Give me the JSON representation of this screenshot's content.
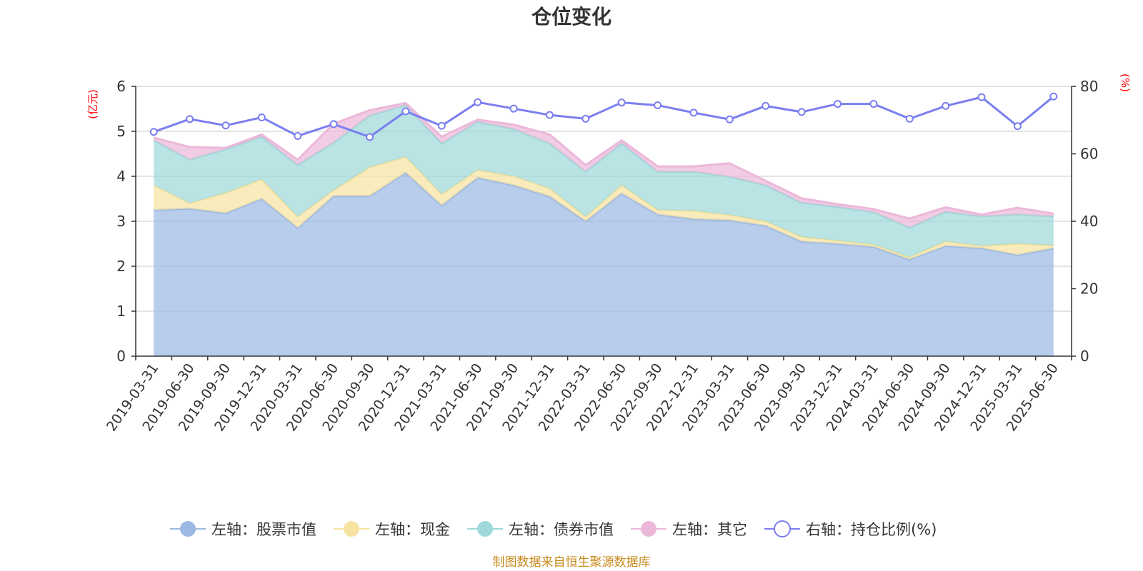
{
  "chart_data": {
    "type": "area",
    "title": "仓位变化",
    "y_left_unit": "(亿元)",
    "y_right_unit": "(%)",
    "y_left_range": [
      0,
      6
    ],
    "y_left_ticks": [
      "0",
      "1",
      "2",
      "3",
      "4",
      "5",
      "6"
    ],
    "y_right_range": [
      0,
      80
    ],
    "y_right_ticks": [
      "0",
      "20",
      "40",
      "60",
      "80"
    ],
    "x": [
      "2019-03-31",
      "2019-06-30",
      "2019-09-30",
      "2019-12-31",
      "2020-03-31",
      "2020-06-30",
      "2020-09-30",
      "2020-12-31",
      "2021-03-31",
      "2021-06-30",
      "2021-09-30",
      "2021-12-31",
      "2022-03-31",
      "2022-06-30",
      "2022-09-30",
      "2022-12-31",
      "2023-03-31",
      "2023-06-30",
      "2023-09-30",
      "2023-12-31",
      "2024-03-31",
      "2024-06-30",
      "2024-09-30",
      "2024-12-31",
      "2025-03-31",
      "2025-06-30"
    ],
    "series": [
      {
        "name": "左轴：股票市值",
        "axis": "left",
        "stacked": true,
        "color": "#9db9e3",
        "values": [
          3.25,
          3.28,
          3.18,
          3.5,
          2.85,
          3.56,
          3.56,
          4.08,
          3.35,
          3.97,
          3.8,
          3.55,
          3.0,
          3.62,
          3.15,
          3.05,
          3.02,
          2.9,
          2.55,
          2.5,
          2.43,
          2.15,
          2.45,
          2.4,
          2.25,
          2.4
        ]
      },
      {
        "name": "左轴：现金",
        "axis": "left",
        "stacked": true,
        "color": "#f6e3a1",
        "values": [
          0.55,
          0.12,
          0.45,
          0.43,
          0.25,
          0.13,
          0.64,
          0.35,
          0.25,
          0.17,
          0.2,
          0.18,
          0.1,
          0.18,
          0.1,
          0.18,
          0.12,
          0.1,
          0.1,
          0.07,
          0.05,
          0.05,
          0.1,
          0.05,
          0.25,
          0.06
        ]
      },
      {
        "name": "左轴：债券市值",
        "axis": "left",
        "stacked": true,
        "color": "#9fd9d9",
        "values": [
          1.0,
          0.97,
          0.97,
          0.95,
          1.15,
          1.06,
          1.15,
          1.15,
          1.13,
          1.07,
          1.05,
          1.0,
          1.0,
          0.93,
          0.85,
          0.87,
          0.85,
          0.8,
          0.76,
          0.75,
          0.72,
          0.66,
          0.66,
          0.66,
          0.65,
          0.65
        ]
      },
      {
        "name": "左轴：其它",
        "axis": "left",
        "stacked": true,
        "color": "#ebb8da",
        "values": [
          0.06,
          0.28,
          0.03,
          0.05,
          0.12,
          0.42,
          0.12,
          0.05,
          0.15,
          0.05,
          0.1,
          0.2,
          0.15,
          0.07,
          0.12,
          0.12,
          0.3,
          0.1,
          0.1,
          0.06,
          0.07,
          0.2,
          0.1,
          0.04,
          0.15,
          0.06
        ]
      },
      {
        "name": "右轴：持仓比例(%)",
        "axis": "right",
        "stacked": false,
        "color": "#7b7ff0",
        "values": [
          66.5,
          70.3,
          68.4,
          70.8,
          65.3,
          68.8,
          65.0,
          72.6,
          68.3,
          75.3,
          73.4,
          71.5,
          70.4,
          75.2,
          74.4,
          72.2,
          70.2,
          74.2,
          72.4,
          74.8,
          74.8,
          70.4,
          74.2,
          76.8,
          68.2,
          77.0
        ]
      }
    ],
    "legend_position": "bottom",
    "grid": true
  },
  "colors": {
    "axis": "#333333",
    "grid": "#c8c8c8",
    "unit_text": "#ff0000",
    "source_text": "#c98b1e"
  },
  "footer": {
    "source": "制图数据来自恒生聚源数据库"
  }
}
